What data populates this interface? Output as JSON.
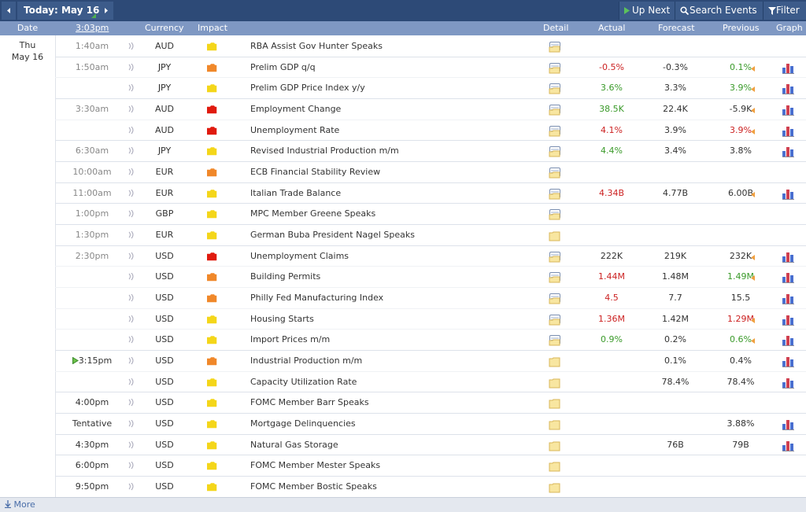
{
  "toolbar": {
    "today": "Today: May 16",
    "up_next": "Up Next",
    "search": "Search Events",
    "filter": "Filter"
  },
  "header": {
    "date": "Date",
    "time": "3:03pm",
    "currency": "Currency",
    "impact": "Impact",
    "detail": "Detail",
    "actual": "Actual",
    "forecast": "Forecast",
    "previous": "Previous",
    "graph": "Graph"
  },
  "day": {
    "weekday": "Thu",
    "date": "May 16"
  },
  "rows": [
    {
      "time": "1:40am",
      "time_state": "past",
      "currency": "AUD",
      "impact": "low",
      "event": "RBA Assist Gov Hunter Speaks",
      "detail": "open",
      "graph": false
    },
    {
      "time": "1:50am",
      "time_state": "past",
      "currency": "JPY",
      "impact": "medium",
      "event": "Prelim GDP q/q",
      "detail": "open",
      "actual": "-0.5%",
      "actual_color": "worse",
      "forecast": "-0.3%",
      "previous": "0.1%",
      "previous_color": "better",
      "previous_revised": true,
      "graph": true
    },
    {
      "time": null,
      "currency": "JPY",
      "impact": "low",
      "event": "Prelim GDP Price Index y/y",
      "detail": "open",
      "actual": "3.6%",
      "actual_color": "better",
      "forecast": "3.3%",
      "previous": "3.9%",
      "previous_color": "better",
      "previous_revised": true,
      "graph": true
    },
    {
      "time": "3:30am",
      "time_state": "past",
      "currency": "AUD",
      "impact": "high",
      "event": "Employment Change",
      "detail": "open",
      "actual": "38.5K",
      "actual_color": "better",
      "forecast": "22.4K",
      "previous": "-5.9K",
      "previous_revised": true,
      "graph": true
    },
    {
      "time": null,
      "currency": "AUD",
      "impact": "high",
      "event": "Unemployment Rate",
      "detail": "open",
      "actual": "4.1%",
      "actual_color": "worse",
      "forecast": "3.9%",
      "previous": "3.9%",
      "previous_color": "worse",
      "previous_revised": true,
      "graph": true
    },
    {
      "time": "6:30am",
      "time_state": "past",
      "currency": "JPY",
      "impact": "low",
      "event": "Revised Industrial Production m/m",
      "detail": "open",
      "actual": "4.4%",
      "actual_color": "better",
      "forecast": "3.4%",
      "previous": "3.8%",
      "graph": true
    },
    {
      "time": "10:00am",
      "time_state": "past",
      "currency": "EUR",
      "impact": "medium",
      "event": "ECB Financial Stability Review",
      "detail": "open",
      "graph": false
    },
    {
      "time": "11:00am",
      "time_state": "past",
      "currency": "EUR",
      "impact": "low",
      "event": "Italian Trade Balance",
      "detail": "open",
      "actual": "4.34B",
      "actual_color": "worse",
      "forecast": "4.77B",
      "previous": "6.00B",
      "previous_revised": true,
      "graph": true
    },
    {
      "time": "1:00pm",
      "time_state": "past",
      "currency": "GBP",
      "impact": "low",
      "event": "MPC Member Greene Speaks",
      "detail": "open",
      "graph": false
    },
    {
      "time": "1:30pm",
      "time_state": "past",
      "currency": "EUR",
      "impact": "low",
      "event": "German Buba President Nagel Speaks",
      "detail": "folder",
      "graph": false
    },
    {
      "time": "2:30pm",
      "time_state": "past",
      "currency": "USD",
      "impact": "high",
      "event": "Unemployment Claims",
      "detail": "open",
      "actual": "222K",
      "forecast": "219K",
      "previous": "232K",
      "previous_revised": true,
      "graph": true
    },
    {
      "time": null,
      "currency": "USD",
      "impact": "medium",
      "event": "Building Permits",
      "detail": "open",
      "actual": "1.44M",
      "actual_color": "worse",
      "forecast": "1.48M",
      "previous": "1.49M",
      "previous_color": "better",
      "previous_revised": true,
      "graph": true
    },
    {
      "time": null,
      "currency": "USD",
      "impact": "medium",
      "event": "Philly Fed Manufacturing Index",
      "detail": "open",
      "actual": "4.5",
      "actual_color": "worse",
      "forecast": "7.7",
      "previous": "15.5",
      "graph": true
    },
    {
      "time": null,
      "currency": "USD",
      "impact": "low",
      "event": "Housing Starts",
      "detail": "open",
      "actual": "1.36M",
      "actual_color": "worse",
      "forecast": "1.42M",
      "previous": "1.29M",
      "previous_color": "worse",
      "previous_revised": true,
      "graph": true
    },
    {
      "time": null,
      "currency": "USD",
      "impact": "low",
      "event": "Import Prices m/m",
      "detail": "open",
      "actual": "0.9%",
      "actual_color": "better",
      "forecast": "0.2%",
      "previous": "0.6%",
      "previous_color": "better",
      "previous_revised": true,
      "graph": true
    },
    {
      "time": "3:15pm",
      "time_state": "next",
      "currency": "USD",
      "impact": "medium",
      "event": "Industrial Production m/m",
      "detail": "folder",
      "forecast": "0.1%",
      "previous": "0.4%",
      "graph": true
    },
    {
      "time": null,
      "currency": "USD",
      "impact": "low",
      "event": "Capacity Utilization Rate",
      "detail": "folder",
      "forecast": "78.4%",
      "previous": "78.4%",
      "graph": true
    },
    {
      "time": "4:00pm",
      "time_state": "upcoming",
      "currency": "USD",
      "impact": "low",
      "event": "FOMC Member Barr Speaks",
      "detail": "folder",
      "graph": false
    },
    {
      "time": "Tentative",
      "time_state": "upcoming",
      "currency": "USD",
      "impact": "low",
      "event": "Mortgage Delinquencies",
      "detail": "folder",
      "previous": "3.88%",
      "graph": true
    },
    {
      "time": "4:30pm",
      "time_state": "upcoming",
      "currency": "USD",
      "impact": "low",
      "event": "Natural Gas Storage",
      "detail": "folder",
      "forecast": "76B",
      "previous": "79B",
      "graph": true
    },
    {
      "time": "6:00pm",
      "time_state": "upcoming",
      "currency": "USD",
      "impact": "low",
      "event": "FOMC Member Mester Speaks",
      "detail": "folder",
      "graph": false
    },
    {
      "time": "9:50pm",
      "time_state": "upcoming",
      "currency": "USD",
      "impact": "low",
      "event": "FOMC Member Bostic Speaks",
      "detail": "folder",
      "graph": false
    }
  ],
  "footer": {
    "more": "More"
  }
}
